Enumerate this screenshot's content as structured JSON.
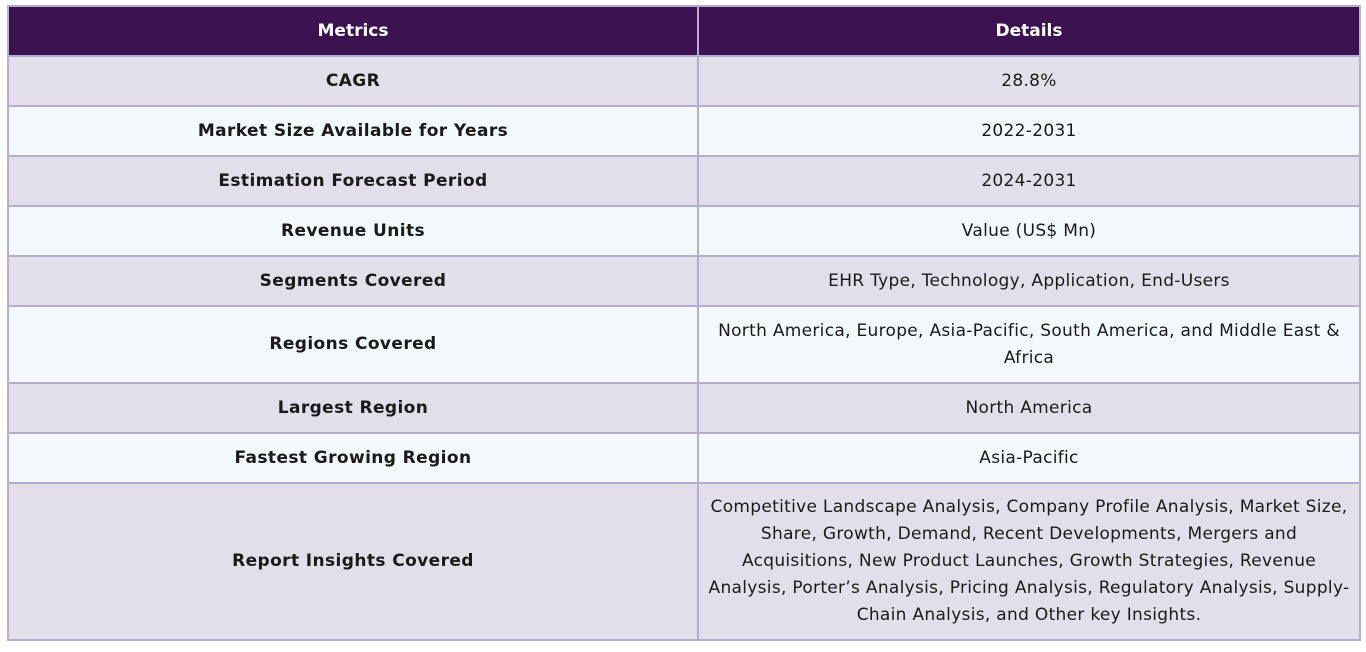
{
  "table": {
    "headers": {
      "metrics": "Metrics",
      "details": "Details"
    },
    "rows": [
      {
        "metric": "CAGR",
        "detail": "28.8%"
      },
      {
        "metric": "Market Size Available for Years",
        "detail": "2022-2031"
      },
      {
        "metric": "Estimation Forecast Period",
        "detail": "2024-2031"
      },
      {
        "metric": "Revenue Units",
        "detail": "Value (US$ Mn)"
      },
      {
        "metric": "Segments Covered",
        "detail": "EHR Type, Technology, Application, End-Users"
      },
      {
        "metric": "Regions Covered",
        "detail": "North America, Europe, Asia-Pacific, South America, and Middle East & Africa"
      },
      {
        "metric": "Largest Region",
        "detail": "North America"
      },
      {
        "metric": "Fastest Growing Region",
        "detail": "Asia-Pacific"
      },
      {
        "metric": "Report Insights Covered",
        "detail": "Competitive Landscape Analysis, Company Profile Analysis, Market Size, Share, Growth, Demand, Recent Developments, Mergers and Acquisitions, New Product Launches, Growth Strategies, Revenue Analysis, Porter’s Analysis, Pricing Analysis, Regulatory Analysis, Supply-Chain Analysis, and Other key Insights."
      }
    ]
  },
  "colors": {
    "header_bg": "#3b1150",
    "header_text": "#ffffff",
    "row_odd_bg": "#e2dfeb",
    "row_even_bg": "#f3f9fc",
    "border": "#b5aed0"
  }
}
